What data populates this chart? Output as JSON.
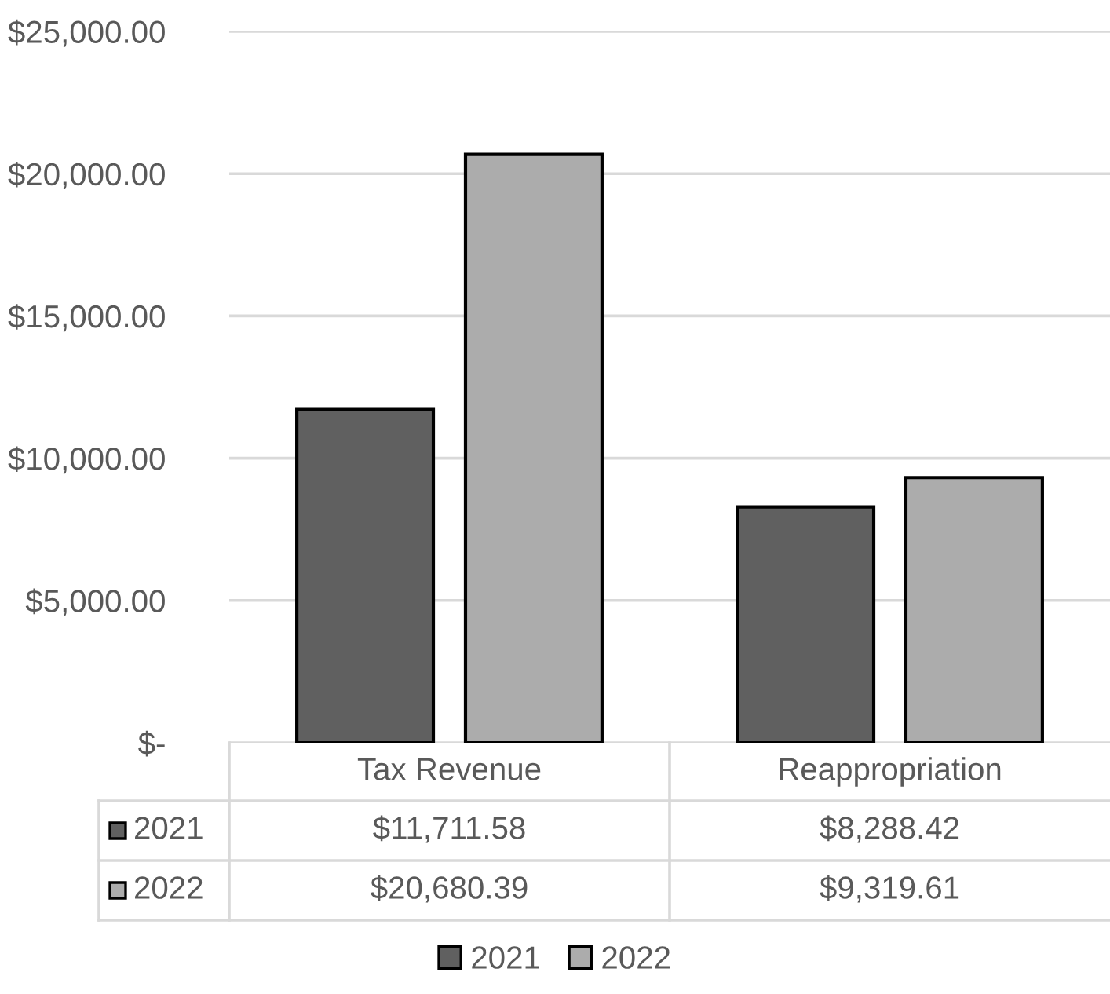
{
  "chart_data": {
    "type": "bar",
    "categories": [
      "Tax Revenue",
      "Reappropriation"
    ],
    "series": [
      {
        "name": "2021",
        "color": "#606060",
        "values": [
          11711.58,
          8288.42
        ],
        "value_labels": [
          "$11,711.58",
          "$8,288.42"
        ]
      },
      {
        "name": "2022",
        "color": "#acacac",
        "values": [
          20680.39,
          9319.61
        ],
        "value_labels": [
          "$20,680.39",
          "$9,319.61"
        ]
      }
    ],
    "ylim": [
      0,
      25000
    ],
    "yticks": [
      {
        "value": 0,
        "label": "$-"
      },
      {
        "value": 5000,
        "label": "$5,000.00"
      },
      {
        "value": 10000,
        "label": "$10,000.00"
      },
      {
        "value": 15000,
        "label": "$15,000.00"
      },
      {
        "value": 20000,
        "label": "$20,000.00"
      },
      {
        "value": 25000,
        "label": "$25,000.00"
      }
    ],
    "grid": "y",
    "legend": "bottom"
  }
}
